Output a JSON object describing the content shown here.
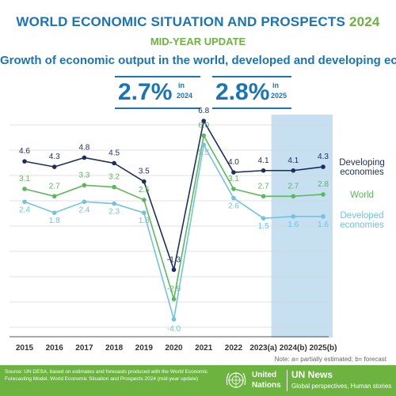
{
  "header": {
    "title_main": "WORLD ECONOMIC SITUATION AND PROSPECTS",
    "title_year": "2024",
    "subtitle": "MID-YEAR UPDATE",
    "growth_title": "Growth of economic output in the world, developed and developing economies"
  },
  "stats": [
    {
      "value": "2.7%",
      "in_label": "in",
      "year": "2024"
    },
    {
      "value": "2.8%",
      "in_label": "in",
      "year": "2025"
    }
  ],
  "note": "Note: a= partially estimated; b= forecast",
  "footer": {
    "source": "Source: UN DESA, based on estimates and forecasts produced with the World Economic Forecasting Model, World Economic Situation and Prospects 2024 (mid-year update)",
    "un_line1": "United",
    "un_line2": "Nations",
    "news": "UN News",
    "tagline": "Global perspectives, Human stories"
  },
  "colors": {
    "brand_blue": "#1a74b8",
    "brand_green": "#6cb33f",
    "developing": "#1c2f5c",
    "world": "#5cb85c",
    "developed": "#6fc3e3",
    "forecast_band": "#bcd9ef"
  },
  "chart_data": {
    "type": "line",
    "categories": [
      "2015",
      "2016",
      "2017",
      "2018",
      "2019",
      "2020",
      "2021",
      "2022",
      "2023(a)",
      "2024(b)",
      "2025(b)"
    ],
    "highlight_categories": [
      "2023(a)",
      "2024(b)",
      "2025(b)"
    ],
    "series": [
      {
        "name": "Developing economies",
        "label_lines": [
          "Developing",
          "economies"
        ],
        "color": "#1c2f5c",
        "values": [
          4.6,
          4.3,
          4.8,
          4.5,
          3.5,
          -1.3,
          6.8,
          4.0,
          4.1,
          4.1,
          4.3
        ]
      },
      {
        "name": "World",
        "label_lines": [
          "World"
        ],
        "color": "#5cb85c",
        "values": [
          3.1,
          2.7,
          3.3,
          3.2,
          2.5,
          -2.9,
          6.0,
          3.1,
          2.7,
          2.7,
          2.8
        ]
      },
      {
        "name": "Developed economies",
        "label_lines": [
          "Developed",
          "economies"
        ],
        "color": "#6fc3e3",
        "values": [
          2.4,
          1.8,
          2.4,
          2.3,
          1.8,
          -4.0,
          5.5,
          2.6,
          1.5,
          1.6,
          1.6
        ]
      }
    ],
    "grid": true,
    "legend": "right"
  }
}
